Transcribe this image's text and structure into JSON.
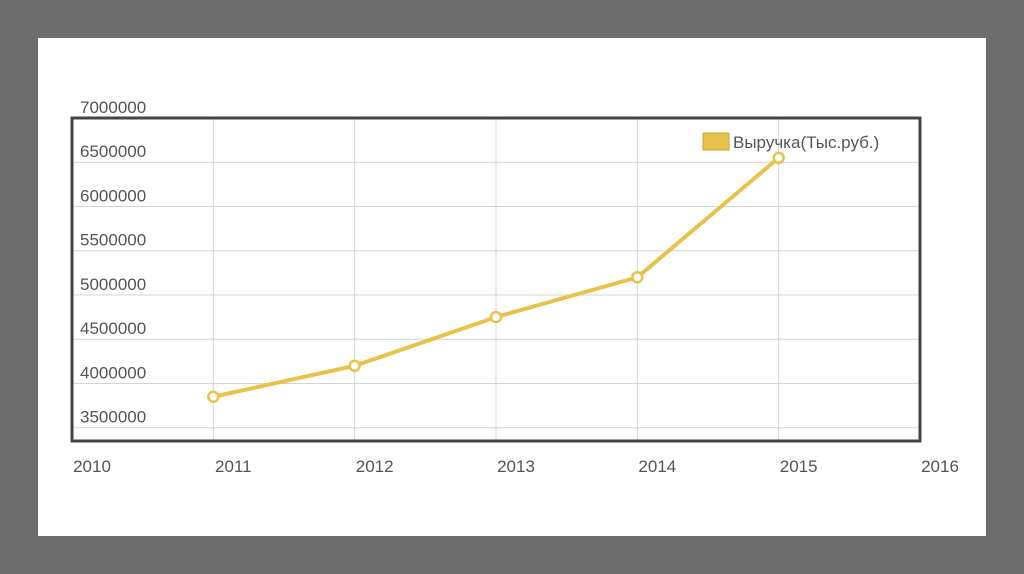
{
  "chart_data": {
    "type": "line",
    "title": "",
    "xlabel": "",
    "ylabel": "",
    "x_ticks": [
      "2010",
      "2011",
      "2012",
      "2013",
      "2014",
      "2015",
      "2016"
    ],
    "y_ticks": [
      "7000000",
      "6500000",
      "6000000",
      "5500000",
      "5000000",
      "4500000",
      "4000000",
      "3500000"
    ],
    "xlim": [
      2010,
      2016
    ],
    "ylim": [
      3350000,
      7000000
    ],
    "grid": true,
    "legend_position": "top-right",
    "series": [
      {
        "name": "Выручка(Тыс.руб.)",
        "color": "#e8c24a",
        "x": [
          2011,
          2012,
          2013,
          2014,
          2015
        ],
        "values": [
          3850000,
          4200000,
          4750000,
          5200000,
          6550000
        ]
      }
    ]
  }
}
